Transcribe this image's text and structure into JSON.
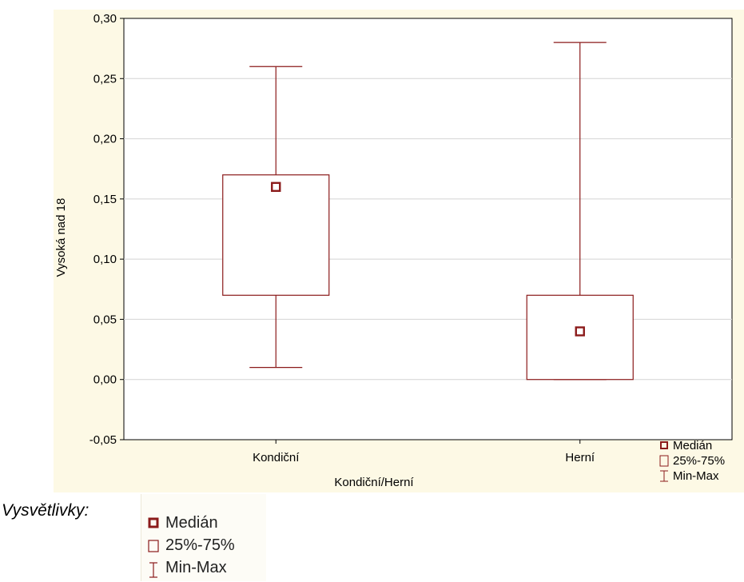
{
  "chart_data": {
    "type": "boxplot",
    "xlabel": "Kondiční/Herní",
    "ylabel": "Vysoká nad 18",
    "ylim": [
      -0.05,
      0.3
    ],
    "yticks": [
      "-0,05",
      "0,00",
      "0,05",
      "0,10",
      "0,15",
      "0,20",
      "0,25",
      "0,30"
    ],
    "ytick_values": [
      -0.05,
      0.0,
      0.05,
      0.1,
      0.15,
      0.2,
      0.25,
      0.3
    ],
    "categories": [
      "Kondiční",
      "Herní"
    ],
    "boxes": [
      {
        "category": "Kondiční",
        "min": 0.01,
        "q1": 0.07,
        "median": 0.16,
        "q3": 0.17,
        "max": 0.26
      },
      {
        "category": "Herní",
        "min": 0.0,
        "q1": 0.0,
        "median": 0.04,
        "q3": 0.07,
        "max": 0.28
      }
    ],
    "grid": true,
    "legend_position": "bottom-right",
    "legend": [
      "Medián",
      "25%-75%",
      "Min-Max"
    ],
    "color": "#8b1a1a"
  },
  "explanation": {
    "title": "Vysvětlivky:",
    "items": [
      "Medián",
      "25%-75%",
      "Min-Max"
    ]
  }
}
